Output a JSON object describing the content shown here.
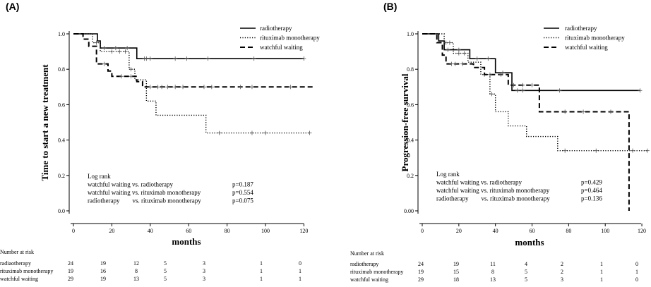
{
  "chart_data": [
    {
      "type": "line",
      "panel_label": "(A)",
      "ylabel": "Time to start a new treatment",
      "xlabel": "months",
      "xlim": [
        0,
        125
      ],
      "ylim": [
        0,
        1.0
      ],
      "x_ticks": [
        0,
        20,
        40,
        60,
        80,
        100,
        120
      ],
      "y_ticks": [
        0.0,
        0.2,
        0.4,
        0.6,
        0.8,
        1.0
      ],
      "x_tick_labels": [
        "0",
        "20",
        "40",
        "60",
        "80",
        "100",
        "120"
      ],
      "y_tick_labels": [
        "0.0",
        "0.2",
        "0.4",
        "0.6",
        "0.8",
        "1.0"
      ],
      "legend_position": "top-right",
      "series": [
        {
          "name": "radiotherapy",
          "style": "solid",
          "steps": [
            [
              0,
              1.0
            ],
            [
              12.5,
              0.96
            ],
            [
              14,
              0.92
            ],
            [
              26,
              0.92
            ],
            [
              33,
              0.86
            ],
            [
              120,
              0.86
            ]
          ],
          "censored": [
            [
              16,
              0.92
            ],
            [
              22,
              0.92
            ],
            [
              28,
              0.92
            ],
            [
              37,
              0.86
            ],
            [
              38,
              0.86
            ],
            [
              40,
              0.86
            ],
            [
              53,
              0.86
            ],
            [
              59,
              0.86
            ],
            [
              70,
              0.86
            ],
            [
              94,
              0.86
            ],
            [
              120,
              0.86
            ]
          ]
        },
        {
          "name": "rituximab monotherapy",
          "style": "dotted",
          "steps": [
            [
              0,
              1.0
            ],
            [
              10,
              0.95
            ],
            [
              14,
              0.9
            ],
            [
              29,
              0.8
            ],
            [
              32,
              0.74
            ],
            [
              38,
              0.62
            ],
            [
              43,
              0.54
            ],
            [
              69,
              0.44
            ],
            [
              123,
              0.44
            ]
          ],
          "censored": [
            [
              12,
              0.95
            ],
            [
              20,
              0.9
            ],
            [
              24,
              0.9
            ],
            [
              27,
              0.9
            ],
            [
              30,
              0.8
            ],
            [
              76,
              0.44
            ],
            [
              93,
              0.44
            ],
            [
              100,
              0.44
            ],
            [
              123,
              0.44
            ]
          ]
        },
        {
          "name": "watchful waiting",
          "style": "dashed",
          "steps": [
            [
              0,
              1.0
            ],
            [
              5,
              0.97
            ],
            [
              8,
              0.93
            ],
            [
              12,
              0.83
            ],
            [
              18,
              0.79
            ],
            [
              20,
              0.76
            ],
            [
              33,
              0.73
            ],
            [
              36,
              0.7
            ],
            [
              125,
              0.7
            ]
          ],
          "censored": [
            [
              16,
              0.83
            ],
            [
              25,
              0.76
            ],
            [
              30,
              0.76
            ],
            [
              40,
              0.7
            ],
            [
              44,
              0.7
            ],
            [
              46,
              0.7
            ],
            [
              49,
              0.7
            ],
            [
              53,
              0.7
            ],
            [
              57,
              0.7
            ],
            [
              68,
              0.7
            ],
            [
              72,
              0.7
            ],
            [
              87,
              0.7
            ],
            [
              93,
              0.7
            ],
            [
              113,
              0.7
            ]
          ]
        }
      ],
      "annotations": {
        "title": "Log rank",
        "rows": [
          {
            "comparison": "watchful waiting vs. radiotherapy",
            "p": "p=0.187"
          },
          {
            "comparison": "watchful waiting vs. rituximab monotherapy",
            "p": "p=0.554"
          },
          {
            "comparison": "radiotherapy        vs. rituximab monotherapy",
            "p": "p=0.075"
          }
        ]
      },
      "risk_table": {
        "title": "Number at risk",
        "rows": [
          {
            "label": "radiaotherapy",
            "values": [
              "24",
              "19",
              "12",
              "5",
              "3",
              "1",
              "0"
            ]
          },
          {
            "label": "rituximab monotherapy",
            "values": [
              "19",
              "16",
              "8",
              "5",
              "3",
              "1",
              "1"
            ]
          },
          {
            "label": "watchful waiting",
            "values": [
              "29",
              "19",
              "13",
              "5",
              "3",
              "1",
              "1"
            ]
          }
        ]
      }
    },
    {
      "type": "line",
      "panel_label": "(B)",
      "ylabel": "Progression-free survival",
      "xlabel": "months",
      "xlim": [
        0,
        125
      ],
      "ylim": [
        0,
        1.0
      ],
      "x_ticks": [
        0,
        20,
        40,
        60,
        80,
        100,
        120
      ],
      "y_ticks": [
        0.0,
        0.2,
        0.4,
        0.6,
        0.8,
        1.0
      ],
      "x_tick_labels": [
        "0",
        "20",
        "40",
        "60",
        "80",
        "100",
        "120"
      ],
      "y_tick_labels": [
        "0.00",
        "0.2",
        "0.4",
        "0.6",
        "0.8",
        "1.0"
      ],
      "legend_position": "top-right",
      "series": [
        {
          "name": "radiotherapy",
          "style": "solid",
          "steps": [
            [
              0,
              1.0
            ],
            [
              9,
              0.96
            ],
            [
              12,
              0.91
            ],
            [
              26,
              0.86
            ],
            [
              40,
              0.78
            ],
            [
              49,
              0.68
            ],
            [
              119,
              0.68
            ]
          ],
          "censored": [
            [
              14,
              0.91
            ],
            [
              20,
              0.91
            ],
            [
              30,
              0.86
            ],
            [
              36,
              0.86
            ],
            [
              44,
              0.78
            ],
            [
              52,
              0.68
            ],
            [
              55,
              0.68
            ],
            [
              75,
              0.68
            ],
            [
              119,
              0.68
            ]
          ]
        },
        {
          "name": "rituximab monotherapy",
          "style": "dotted",
          "steps": [
            [
              0,
              1.0
            ],
            [
              12,
              0.95
            ],
            [
              17,
              0.89
            ],
            [
              25,
              0.84
            ],
            [
              32,
              0.77
            ],
            [
              37,
              0.66
            ],
            [
              40,
              0.56
            ],
            [
              47,
              0.48
            ],
            [
              57,
              0.42
            ],
            [
              74,
              0.34
            ],
            [
              123,
              0.34
            ]
          ],
          "censored": [
            [
              13,
              0.95
            ],
            [
              15,
              0.95
            ],
            [
              20,
              0.89
            ],
            [
              23,
              0.89
            ],
            [
              34,
              0.77
            ],
            [
              38,
              0.66
            ],
            [
              78,
              0.34
            ],
            [
              95,
              0.34
            ],
            [
              115,
              0.34
            ],
            [
              123,
              0.34
            ]
          ]
        },
        {
          "name": "watchful waiting",
          "style": "dashed",
          "steps": [
            [
              0,
              1.0
            ],
            [
              8,
              0.95
            ],
            [
              11,
              0.88
            ],
            [
              13,
              0.83
            ],
            [
              28,
              0.81
            ],
            [
              34,
              0.77
            ],
            [
              47,
              0.71
            ],
            [
              64,
              0.56
            ],
            [
              113,
              0.56
            ],
            [
              113,
              0.0
            ]
          ],
          "censored": [
            [
              16,
              0.83
            ],
            [
              18,
              0.83
            ],
            [
              22,
              0.83
            ],
            [
              37,
              0.77
            ],
            [
              43,
              0.77
            ],
            [
              50,
              0.71
            ],
            [
              55,
              0.71
            ],
            [
              60,
              0.71
            ],
            [
              78,
              0.56
            ],
            [
              88,
              0.56
            ],
            [
              103,
              0.56
            ]
          ]
        }
      ],
      "annotations": {
        "title": "Log rank",
        "rows": [
          {
            "comparison": "watchful waiting vs. radiotherapy",
            "p": "p=0.429"
          },
          {
            "comparison": "watchful waiting vs. rituximab monotherapy",
            "p": "p=0.464"
          },
          {
            "comparison": "radiotherapy        vs. rituximab monotherapy",
            "p": "p=0.136"
          }
        ]
      },
      "risk_table": {
        "title": "Number at risk",
        "rows": [
          {
            "label": "radiotherapy",
            "values": [
              "24",
              "19",
              "11",
              "4",
              "2",
              "1",
              "0"
            ]
          },
          {
            "label": "rituximab monotherapy",
            "values": [
              "19",
              "15",
              "8",
              "5",
              "2",
              "1",
              "1"
            ]
          },
          {
            "label": "watchful waiting",
            "values": [
              "29",
              "18",
              "13",
              "5",
              "3",
              "1",
              "0"
            ]
          }
        ]
      }
    }
  ]
}
